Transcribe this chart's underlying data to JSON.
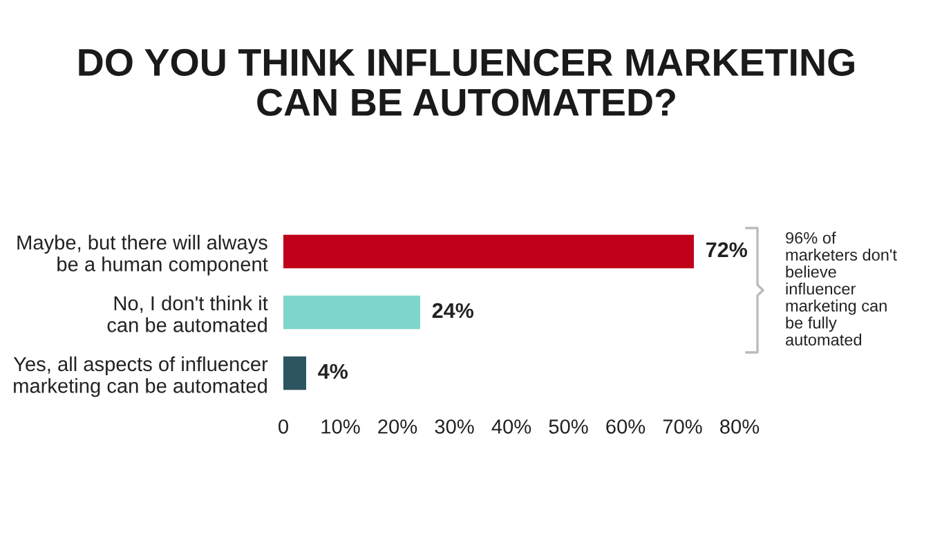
{
  "chart_data": {
    "type": "bar",
    "orientation": "horizontal",
    "title": "DO YOU THINK INFLUENCER MARKETING\nCAN BE AUTOMATED?",
    "categories": [
      "Maybe, but there will always\nbe a human component",
      "No, I don't think it\ncan be automated",
      "Yes, all aspects of influencer\nmarketing can be automated"
    ],
    "values": [
      72,
      24,
      4
    ],
    "colors": [
      "#c0001a",
      "#7dd5cc",
      "#2c5561"
    ],
    "value_labels": [
      "72%",
      "24%",
      "4%"
    ],
    "xlim": [
      0,
      80
    ],
    "xticks": [
      0,
      {
        "value": 10,
        "label": "10%"
      },
      {
        "value": 20,
        "label": "20%"
      },
      {
        "value": 30,
        "label": "30%"
      },
      {
        "value": 40,
        "label": "40%"
      },
      {
        "value": 50,
        "label": "50%"
      },
      {
        "value": 60,
        "label": "60%"
      },
      {
        "value": 70,
        "label": "70%"
      },
      {
        "value": 80,
        "label": "80%"
      }
    ],
    "grid": false,
    "legend": false,
    "annotations": [
      "96% of\nmarketers don't\nbelieve\ninfluencer\nmarketing can\nbe fully\nautomated"
    ]
  }
}
